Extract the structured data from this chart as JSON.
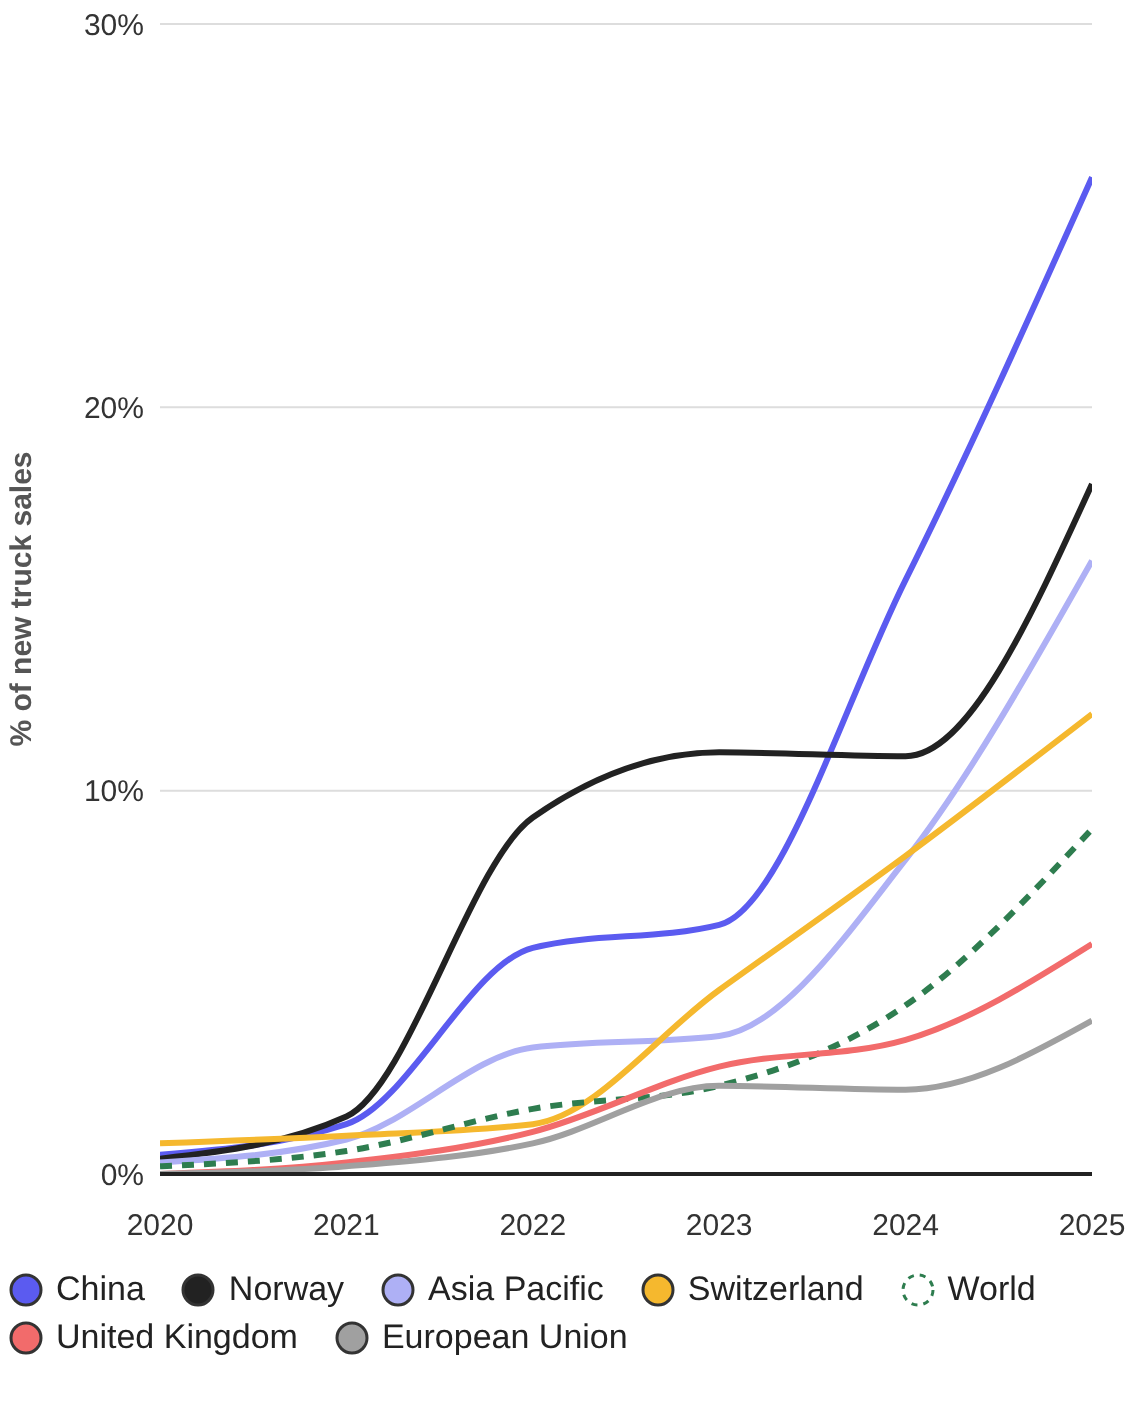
{
  "chart_data": {
    "type": "line",
    "ylabel": "% of new truck sales",
    "x": [
      2020,
      2021,
      2022,
      2023,
      2024,
      2025
    ],
    "xlim": [
      2020,
      2025
    ],
    "xticks": [
      2020,
      2021,
      2022,
      2023,
      2024,
      2025
    ],
    "ylim": [
      0,
      30
    ],
    "yticks": [
      {
        "value": 0,
        "label": "0%"
      },
      {
        "value": 10,
        "label": "10%"
      },
      {
        "value": 20,
        "label": "20%"
      },
      {
        "value": 30,
        "label": "30%"
      }
    ],
    "grid": "y",
    "legend": "bottom",
    "marker": "none",
    "series": [
      {
        "name": "China",
        "color": "#5b5bf0",
        "values": [
          0.5,
          1.3,
          5.9,
          6.5,
          15.5,
          26
        ]
      },
      {
        "name": "Norway",
        "color": "#222222",
        "values": [
          0.4,
          1.5,
          9.3,
          11,
          10.9,
          18
        ]
      },
      {
        "name": "Asia Pacific",
        "color": "#aeb0f5",
        "values": [
          0.3,
          0.9,
          3.3,
          3.6,
          8.2,
          16
        ]
      },
      {
        "name": "Switzerland",
        "color": "#f5b82e",
        "values": [
          0.8,
          1,
          1.3,
          4.8,
          8.3,
          12
        ]
      },
      {
        "name": "World",
        "color": "#2e7d4f",
        "line_style": "dashed",
        "values": [
          0.2,
          0.6,
          1.7,
          2.3,
          4.4,
          9
        ]
      },
      {
        "name": "United Kingdom",
        "color": "#f26b6b",
        "values": [
          0,
          0.3,
          1.1,
          2.8,
          3.5,
          6
        ]
      },
      {
        "name": "European Union",
        "color": "#a0a0a0",
        "values": [
          0,
          0.2,
          0.8,
          2.3,
          2.2,
          4
        ]
      }
    ]
  }
}
